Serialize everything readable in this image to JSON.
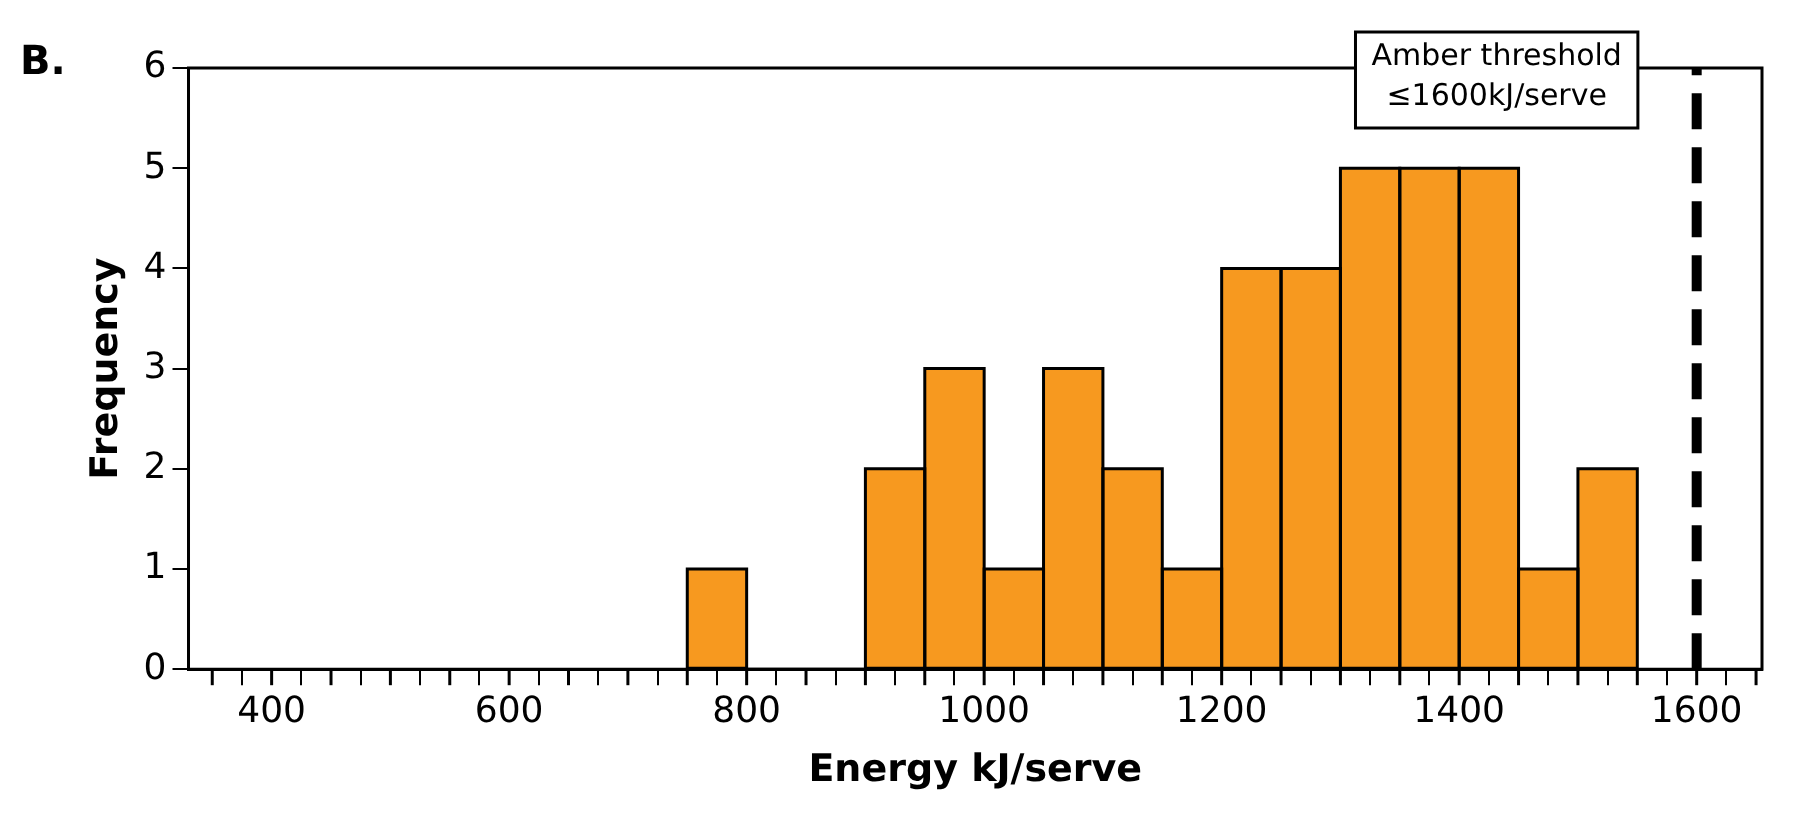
{
  "chart_data": {
    "type": "histogram",
    "xlabel": "Energy kJ/serve",
    "ylabel": "Frequency",
    "bins": [
      750,
      800,
      850,
      900,
      950,
      1000,
      1050,
      1100,
      1150,
      1200,
      1250,
      1300,
      1350,
      1400,
      1450,
      1500,
      1550
    ],
    "values": [
      1,
      0,
      0,
      2,
      3,
      1,
      3,
      2,
      1,
      4,
      4,
      5,
      5,
      5,
      1,
      2
    ],
    "color": "#f7991f",
    "xlim": [
      330,
      1655
    ],
    "xticks": [
      {
        "value": 350,
        "label": null
      },
      400,
      {
        "value": 450,
        "label": null
      },
      {
        "value": 500,
        "label": null
      },
      {
        "value": 550,
        "label": null
      },
      600,
      {
        "value": 650,
        "label": null
      },
      {
        "value": 700,
        "label": null
      },
      {
        "value": 750,
        "label": null
      },
      800,
      {
        "value": 850,
        "label": null
      },
      {
        "value": 900,
        "label": null
      },
      {
        "value": 950,
        "label": null
      },
      1000,
      {
        "value": 1050,
        "label": null
      },
      {
        "value": 1100,
        "label": null
      },
      {
        "value": 1150,
        "label": null
      },
      1200,
      {
        "value": 1250,
        "label": null
      },
      {
        "value": 1300,
        "label": null
      },
      {
        "value": 1350,
        "label": null
      },
      1400,
      {
        "value": 1450,
        "label": null
      },
      {
        "value": 1500,
        "label": null
      },
      {
        "value": 1550,
        "label": null
      },
      1600,
      {
        "value": 1650,
        "label": null
      }
    ],
    "ylim": [
      0,
      6
    ],
    "yticks": [
      0,
      1,
      2,
      3,
      4,
      5,
      6
    ],
    "grid": false,
    "legend": false,
    "ref_lines": [
      {
        "axis": "x",
        "value": 1600,
        "label": "Amber threshold\n≤1600kJ/serve",
        "color": "#000000",
        "line_style": "dashed"
      }
    ],
    "annotations": [
      "B."
    ]
  }
}
